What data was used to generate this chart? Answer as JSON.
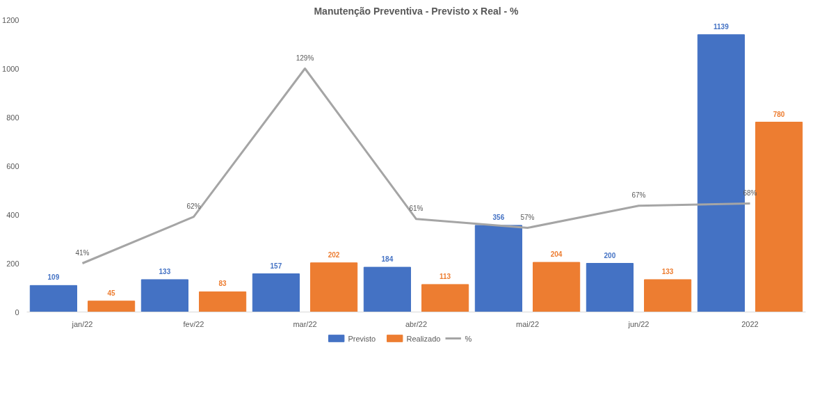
{
  "chart_data": {
    "type": "bar",
    "title": "Manutenção Preventiva - Previsto x Real - %",
    "categories": [
      "jan/22",
      "fev/22",
      "mar/22",
      "abr/22",
      "mai/22",
      "jun/22",
      "2022"
    ],
    "series": [
      {
        "name": "Previsto",
        "color": "#4472c4",
        "values": [
          109,
          133,
          157,
          184,
          356,
          200,
          1139
        ]
      },
      {
        "name": "Realizado",
        "color": "#ed7d31",
        "values": [
          45,
          83,
          202,
          113,
          204,
          133,
          780
        ]
      },
      {
        "name": "%",
        "type": "line",
        "axis": "y2",
        "color": "#a5a5a5",
        "values": [
          41,
          62,
          129,
          61,
          57,
          67,
          68
        ],
        "value_labels": [
          "41%",
          "62%",
          "129%",
          "61%",
          "57%",
          "67%",
          "68%"
        ]
      }
    ],
    "ylim": [
      0,
      1200
    ],
    "yticks": [
      0,
      200,
      400,
      600,
      800,
      1000,
      1200
    ],
    "data_labels": true,
    "grid": false,
    "legend": "bottom",
    "marker": "none",
    "line_style": "solid"
  }
}
